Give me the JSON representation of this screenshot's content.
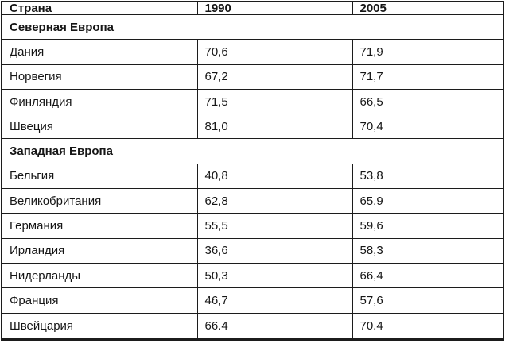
{
  "table": {
    "columns": [
      "Страна",
      "1990",
      "2005"
    ],
    "sections": [
      {
        "label": "Северная Европа",
        "rows": [
          {
            "country": "Дания",
            "y1990": "70,6",
            "y2005": "71,9"
          },
          {
            "country": "Норвегия",
            "y1990": "67,2",
            "y2005": "71,7"
          },
          {
            "country": "Финляндия",
            "y1990": "71,5",
            "y2005": "66,5"
          },
          {
            "country": "Швеция",
            "y1990": "81,0",
            "y2005": "70,4"
          }
        ]
      },
      {
        "label": "Западная Европа",
        "rows": [
          {
            "country": "Бельгия",
            "y1990": "40,8",
            "y2005": "53,8"
          },
          {
            "country": "Великобритания",
            "y1990": "62,8",
            "y2005": "65,9"
          },
          {
            "country": "Германия",
            "y1990": "55,5",
            "y2005": "59,6"
          },
          {
            "country": "Ирландия",
            "y1990": "36,6",
            "y2005": "58,3"
          },
          {
            "country": "Нидерланды",
            "y1990": "50,3",
            "y2005": "66,4"
          },
          {
            "country": "Франция",
            "y1990": "46,7",
            "y2005": "57,6"
          },
          {
            "country": "Швейцария",
            "y1990": "66.4",
            "y2005": "70.4"
          }
        ]
      }
    ]
  },
  "chart_data": {
    "type": "table",
    "title": "",
    "categories": [
      "Дания",
      "Норвегия",
      "Финляндия",
      "Швеция",
      "Бельгия",
      "Великобритания",
      "Германия",
      "Ирландия",
      "Нидерланды",
      "Франция",
      "Швейцария"
    ],
    "groups": [
      "Северная Европа",
      "Северная Европа",
      "Северная Европа",
      "Северная Европа",
      "Западная Европа",
      "Западная Европа",
      "Западная Европа",
      "Западная Европа",
      "Западная Европа",
      "Западная Европа",
      "Западная Европа"
    ],
    "series": [
      {
        "name": "1990",
        "values": [
          70.6,
          67.2,
          71.5,
          81.0,
          40.8,
          62.8,
          55.5,
          36.6,
          50.3,
          46.7,
          66.4
        ]
      },
      {
        "name": "2005",
        "values": [
          71.9,
          71.7,
          66.5,
          70.4,
          53.8,
          65.9,
          59.6,
          58.3,
          66.4,
          57.6,
          70.4
        ]
      }
    ]
  },
  "colors": {
    "border": "#1c1c1c",
    "text": "#161616",
    "background": "#ffffff"
  }
}
